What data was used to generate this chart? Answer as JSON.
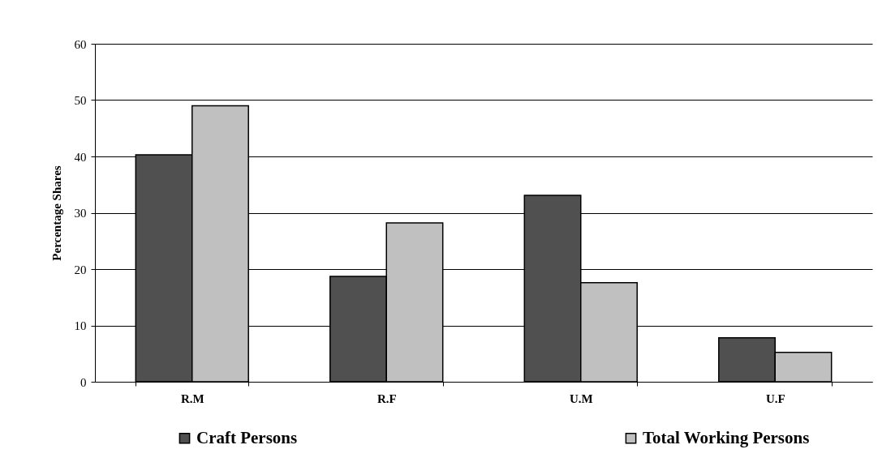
{
  "chart_data": {
    "type": "bar",
    "ylabel": "Percentage Shares",
    "categories": [
      "R.M",
      "R.F",
      "U.M",
      "U.F"
    ],
    "series": [
      {
        "name": "Craft Persons",
        "color": "#505050",
        "values": [
          40.3,
          18.7,
          33.1,
          7.8
        ]
      },
      {
        "name": "Total Working Persons",
        "color": "#c0c0c0",
        "values": [
          49.0,
          28.2,
          17.6,
          5.2
        ]
      }
    ],
    "ylim": [
      0,
      60
    ],
    "yticks": [
      0,
      10,
      20,
      30,
      40,
      50,
      60
    ],
    "grid": "y",
    "legend": "bottom"
  }
}
